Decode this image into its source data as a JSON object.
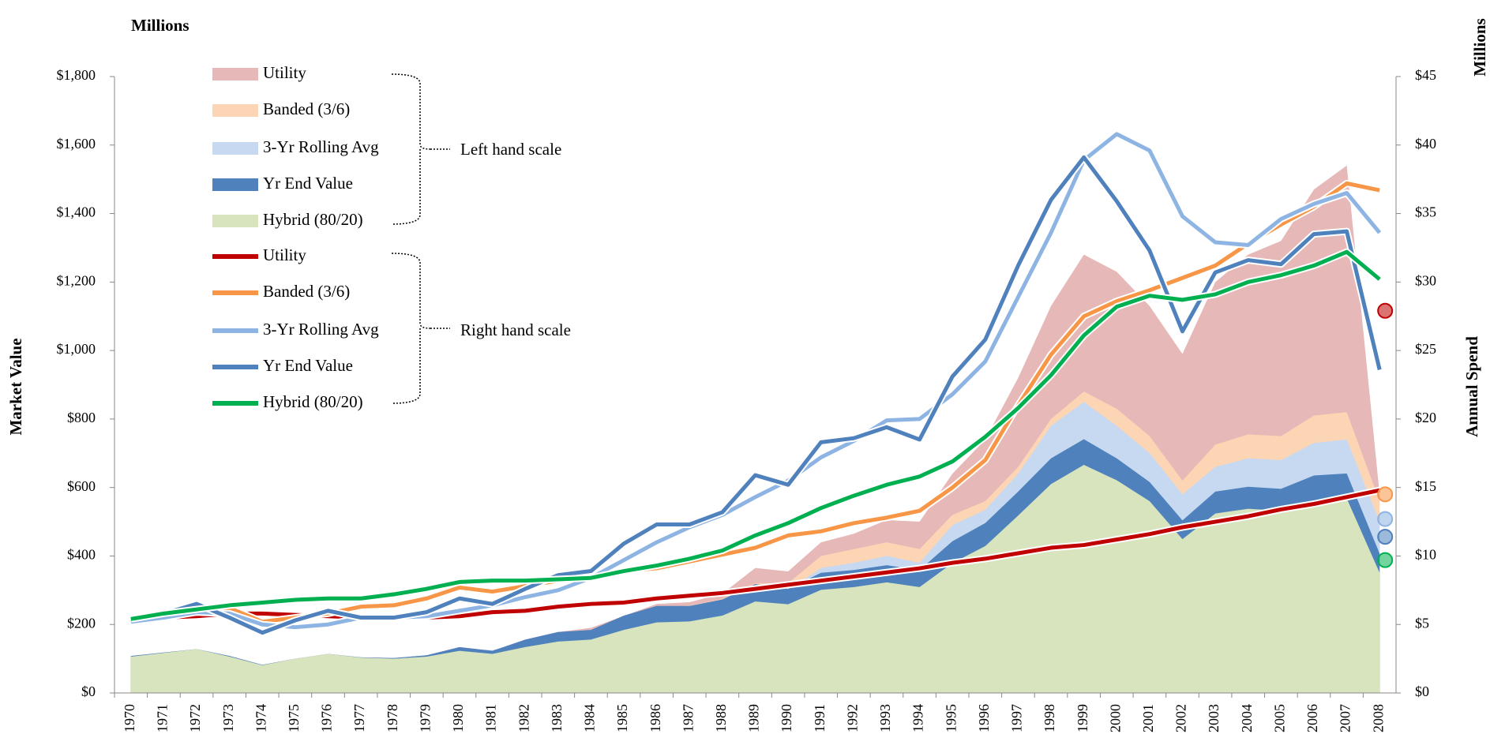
{
  "chart_data": {
    "type": "area_line",
    "y_unit_title": "Millions",
    "y2_unit_title": "Millions",
    "ylabel": "Market Value",
    "y2label": "Annual Spend",
    "categories": [
      "1970",
      "1971",
      "1972",
      "1973",
      "1974",
      "1975",
      "1976",
      "1977",
      "1978",
      "1979",
      "1980",
      "1981",
      "1982",
      "1983",
      "1984",
      "1985",
      "1986",
      "1987",
      "1988",
      "1989",
      "1990",
      "1991",
      "1992",
      "1993",
      "1994",
      "1995",
      "1996",
      "1997",
      "1998",
      "1999",
      "2000",
      "2001",
      "2002",
      "2003",
      "2004",
      "2005",
      "2006",
      "2007",
      "2008"
    ],
    "ylim": [
      0,
      1800
    ],
    "yticks": [
      {
        "value": 0,
        "label": "$0"
      },
      {
        "value": 200,
        "label": "$200"
      },
      {
        "value": 400,
        "label": "$400"
      },
      {
        "value": 600,
        "label": "$600"
      },
      {
        "value": 800,
        "label": "$800"
      },
      {
        "value": 1000,
        "label": "$1,000"
      },
      {
        "value": 1200,
        "label": "$1,200"
      },
      {
        "value": 1400,
        "label": "$1,400"
      },
      {
        "value": 1600,
        "label": "$1,600"
      },
      {
        "value": 1800,
        "label": "$1,800"
      }
    ],
    "y2lim": [
      0,
      45
    ],
    "y2ticks": [
      {
        "value": 0,
        "label": "$0"
      },
      {
        "value": 5,
        "label": "$5"
      },
      {
        "value": 10,
        "label": "$10"
      },
      {
        "value": 15,
        "label": "$15"
      },
      {
        "value": 20,
        "label": "$20"
      },
      {
        "value": 25,
        "label": "$25"
      },
      {
        "value": 30,
        "label": "$30"
      },
      {
        "value": 35,
        "label": "$35"
      },
      {
        "value": 40,
        "label": "$40"
      },
      {
        "value": 45,
        "label": "$45"
      }
    ],
    "annotations": [
      "Left hand scale",
      "Right hand scale"
    ],
    "series": [
      {
        "name": "Utility",
        "type": "area",
        "axis": "y",
        "color": "#e6b8b7",
        "values": [
          108,
          118,
          128,
          108,
          82,
          100,
          114,
          104,
          102,
          110,
          134,
          123,
          156,
          178,
          190,
          225,
          260,
          265,
          290,
          365,
          355,
          440,
          465,
          505,
          500,
          640,
          740,
          920,
          1130,
          1280,
          1230,
          1130,
          990,
          1200,
          1280,
          1320,
          1470,
          1540,
          580
        ]
      },
      {
        "name": "Banded (3/6)",
        "type": "area",
        "axis": "y",
        "color": "#fcd5b5",
        "values": [
          108,
          118,
          128,
          108,
          82,
          100,
          114,
          104,
          102,
          110,
          130,
          125,
          150,
          170,
          180,
          220,
          250,
          255,
          275,
          320,
          320,
          400,
          420,
          440,
          420,
          520,
          560,
          660,
          800,
          880,
          830,
          750,
          620,
          725,
          755,
          750,
          810,
          820,
          560
        ]
      },
      {
        "name": "3-Yr Rolling Avg",
        "type": "area",
        "axis": "y",
        "color": "#c6d9f1",
        "values": [
          108,
          118,
          128,
          108,
          82,
          100,
          114,
          104,
          102,
          110,
          129,
          125,
          145,
          165,
          175,
          215,
          240,
          245,
          260,
          300,
          300,
          365,
          380,
          400,
          380,
          490,
          535,
          640,
          780,
          850,
          780,
          700,
          580,
          660,
          685,
          680,
          730,
          740,
          500
        ]
      },
      {
        "name": "Yr End Value",
        "type": "area",
        "axis": "y",
        "color": "#4f81bd",
        "values": [
          108,
          118,
          128,
          108,
          82,
          100,
          114,
          104,
          102,
          110,
          134,
          123,
          156,
          178,
          184,
          226,
          254,
          254,
          273,
          318,
          304,
          351,
          359,
          373,
          359,
          443,
          496,
          588,
          685,
          741,
          685,
          616,
          504,
          588,
          602,
          596,
          635,
          641,
          407
        ]
      },
      {
        "name": "Hybrid (80/20)",
        "type": "area",
        "axis": "y",
        "color": "#d7e4bd",
        "values": [
          106,
          117,
          128,
          106,
          81,
          100,
          114,
          103,
          100,
          106,
          123,
          114,
          134,
          150,
          156,
          184,
          206,
          209,
          226,
          267,
          259,
          301,
          309,
          323,
          309,
          379,
          429,
          518,
          610,
          666,
          621,
          560,
          449,
          524,
          538,
          532,
          560,
          568,
          351
        ]
      },
      {
        "name": "Utility",
        "type": "line",
        "axis": "y2",
        "color": "#c00000",
        "marker": 27.9,
        "values": [
          5.3,
          5.5,
          5.6,
          5.8,
          5.8,
          5.7,
          5.6,
          5.5,
          5.5,
          5.5,
          5.6,
          5.9,
          6.0,
          6.3,
          6.5,
          6.6,
          6.9,
          7.1,
          7.3,
          7.6,
          7.9,
          8.2,
          8.5,
          8.8,
          9.1,
          9.5,
          9.8,
          10.2,
          10.6,
          10.8,
          11.2,
          11.6,
          12.1,
          12.5,
          12.9,
          13.4,
          13.8,
          14.3,
          14.8
        ]
      },
      {
        "name": "Banded (3/6)",
        "type": "line",
        "axis": "y2",
        "color": "#f79646",
        "marker": 14.5,
        "values": [
          5.4,
          5.7,
          5.9,
          6.2,
          5.2,
          5.5,
          5.8,
          6.3,
          6.4,
          6.9,
          7.7,
          7.4,
          7.8,
          8.2,
          8.4,
          8.9,
          9.1,
          9.6,
          10.1,
          10.6,
          11.5,
          11.8,
          12.4,
          12.8,
          13.3,
          15.0,
          17.0,
          21.0,
          24.7,
          27.5,
          28.6,
          29.4,
          30.3,
          31.2,
          32.8,
          34.2,
          35.5,
          37.2,
          36.7
        ]
      },
      {
        "name": "3-Yr Rolling Avg",
        "type": "line",
        "axis": "y2",
        "color": "#8db4e2",
        "marker": 12.7,
        "values": [
          5.2,
          5.5,
          5.9,
          5.8,
          5.0,
          4.8,
          5.0,
          5.5,
          5.5,
          5.6,
          6.0,
          6.4,
          7.0,
          7.5,
          8.4,
          9.7,
          11.0,
          12.1,
          13.0,
          14.3,
          15.5,
          17.2,
          18.4,
          19.9,
          20.0,
          21.8,
          24.2,
          28.9,
          33.6,
          38.9,
          40.8,
          39.6,
          34.8,
          32.9,
          32.7,
          34.6,
          35.7,
          36.5,
          33.6
        ]
      },
      {
        "name": "Yr End Value",
        "type": "line",
        "axis": "y2",
        "color": "#4f81bd",
        "marker": 11.4,
        "values": [
          5.5,
          5.8,
          6.5,
          5.5,
          4.4,
          5.3,
          6.0,
          5.5,
          5.5,
          5.9,
          6.9,
          6.5,
          7.6,
          8.6,
          8.9,
          10.9,
          12.3,
          12.3,
          13.2,
          15.9,
          15.2,
          18.3,
          18.6,
          19.4,
          18.5,
          23.1,
          25.8,
          31.2,
          36.0,
          39.1,
          35.9,
          32.3,
          26.4,
          30.7,
          31.6,
          31.3,
          33.5,
          33.7,
          23.6
        ]
      },
      {
        "name": "Hybrid (80/20)",
        "type": "line",
        "axis": "y2",
        "color": "#00b050",
        "marker": 9.7,
        "values": [
          5.4,
          5.8,
          6.1,
          6.4,
          6.6,
          6.8,
          6.9,
          6.9,
          7.2,
          7.6,
          8.1,
          8.2,
          8.2,
          8.3,
          8.4,
          8.9,
          9.3,
          9.8,
          10.4,
          11.5,
          12.4,
          13.5,
          14.4,
          15.2,
          15.8,
          16.9,
          18.7,
          20.8,
          23.2,
          26.1,
          28.2,
          29.0,
          28.7,
          29.1,
          30.0,
          30.5,
          31.2,
          32.2,
          30.2
        ]
      }
    ]
  }
}
